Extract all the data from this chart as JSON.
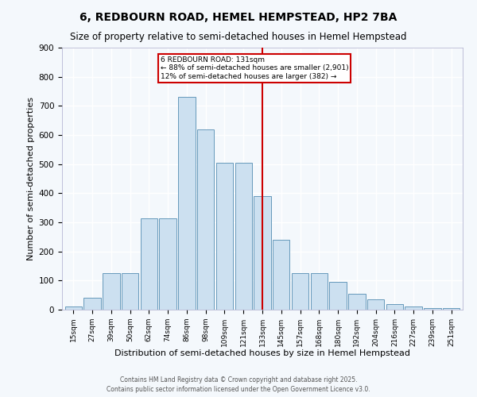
{
  "title": "6, REDBOURN ROAD, HEMEL HEMPSTEAD, HP2 7BA",
  "subtitle": "Size of property relative to semi-detached houses in Hemel Hempstead",
  "xlabel": "Distribution of semi-detached houses by size in Hemel Hempstead",
  "ylabel": "Number of semi-detached properties",
  "categories": [
    "15sqm",
    "27sqm",
    "39sqm",
    "50sqm",
    "62sqm",
    "74sqm",
    "86sqm",
    "98sqm",
    "109sqm",
    "121sqm",
    "133sqm",
    "145sqm",
    "157sqm",
    "168sqm",
    "180sqm",
    "192sqm",
    "204sqm",
    "216sqm",
    "227sqm",
    "239sqm",
    "251sqm"
  ],
  "values": [
    10,
    40,
    125,
    125,
    315,
    315,
    730,
    620,
    505,
    505,
    390,
    240,
    125,
    125,
    95,
    55,
    35,
    20,
    10,
    5,
    5
  ],
  "bar_color": "#cce0f0",
  "bar_edge_color": "#6699bb",
  "marker_index": 10,
  "annotation_title": "6 REDBOURN ROAD: 131sqm",
  "annotation_line1": "← 88% of semi-detached houses are smaller (2,901)",
  "annotation_line2": "12% of semi-detached houses are larger (382) →",
  "annotation_color": "#cc0000",
  "ylim": [
    0,
    900
  ],
  "yticks": [
    0,
    100,
    200,
    300,
    400,
    500,
    600,
    700,
    800,
    900
  ],
  "background_color": "#f4f8fc",
  "plot_bg_color": "#f4f8fc",
  "footer": "Contains HM Land Registry data © Crown copyright and database right 2025.\nContains public sector information licensed under the Open Government Licence v3.0.",
  "title_fontsize": 10,
  "subtitle_fontsize": 8.5,
  "xlabel_fontsize": 8,
  "ylabel_fontsize": 8
}
